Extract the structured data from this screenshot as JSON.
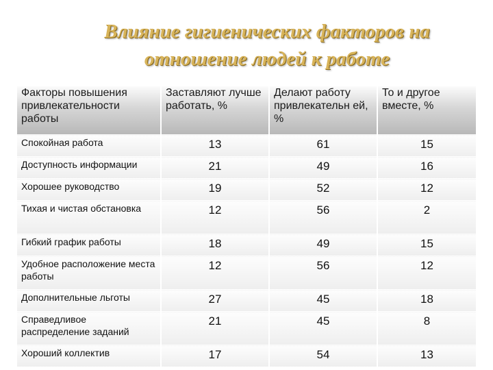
{
  "title": {
    "line1": "Влияние гигиенических факторов на",
    "line2": "отношение людей к работе"
  },
  "table": {
    "headers": [
      "Факторы повышения привлекательности работы",
      "Заставляют лучше работать, %",
      "Делают работу привлекательн ей, %",
      "То и другое вместе, %"
    ],
    "rows": [
      {
        "factor": "Спокойная работа",
        "values": [
          "13",
          "61",
          "15"
        ]
      },
      {
        "factor": "Доступность информации",
        "values": [
          "21",
          "49",
          "16"
        ]
      },
      {
        "factor": "Хорошее руководство",
        "values": [
          "19",
          "52",
          "12"
        ]
      },
      {
        "factor": "Тихая и чистая обстановка",
        "values": [
          "12",
          "56",
          "2"
        ]
      },
      {
        "factor": "Гибкий график работы",
        "values": [
          "18",
          "49",
          "15"
        ]
      },
      {
        "factor": "Удобное расположение места работы",
        "values": [
          "12",
          "56",
          "12"
        ]
      },
      {
        "factor": "Дополнительные льготы",
        "values": [
          "27",
          "45",
          "18"
        ]
      },
      {
        "factor": "Справедливое распределение заданий",
        "values": [
          "21",
          "45",
          "8"
        ]
      },
      {
        "factor": "Хороший коллектив",
        "values": [
          "17",
          "54",
          "13"
        ]
      }
    ]
  }
}
